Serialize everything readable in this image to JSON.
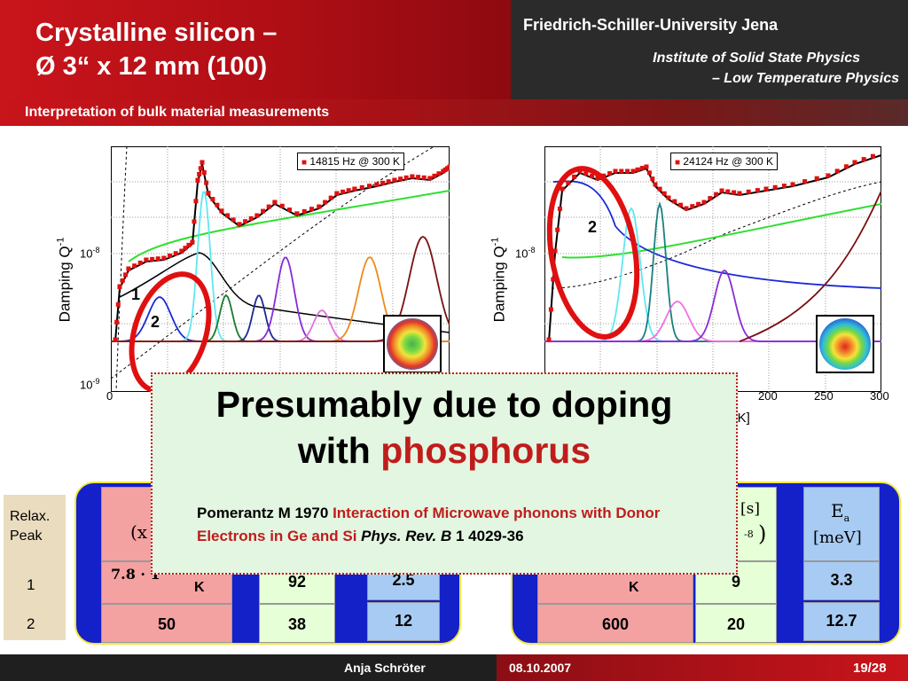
{
  "header": {
    "title_line1": "Crystalline silicon –",
    "title_line2": "Ø 3“ x 12 mm (100)",
    "university": "Friedrich-Schiller-University Jena",
    "institute_line1": "Institute of Solid State Physics",
    "institute_line2": "– Low Temperature Physics",
    "subtitle": "Interpretation of bulk material measurements"
  },
  "chart_data": [
    {
      "type": "line",
      "legend": "14815 Hz @ 300 K",
      "ylabel": "Damping Q",
      "ylabel_sup": "-1",
      "y_ticks": [
        {
          "base": "10",
          "exp": "-8"
        },
        {
          "base": "10",
          "exp": "-9"
        }
      ],
      "x_ticks": [
        "0"
      ],
      "log_y": true,
      "labels": [
        "1",
        "2"
      ],
      "xlim": [
        0,
        300
      ]
    },
    {
      "type": "line",
      "legend": "24124 Hz @ 300 K",
      "ylabel": "Damping Q",
      "ylabel_sup": "-1",
      "y_ticks": [
        {
          "base": "10",
          "exp": "-8"
        }
      ],
      "x_ticks": [
        "200",
        "250",
        "300"
      ],
      "xlabel_fragment": "e [K]",
      "log_y": true,
      "labels": [
        "2"
      ],
      "xlim": [
        0,
        300
      ]
    }
  ],
  "popup": {
    "line1": "Presumably due to doping",
    "line2_prefix": "with",
    "line2_highlight": "phosphorus",
    "ref_author": "Pomerantz M 1970",
    "ref_title": "Interaction of Microwave phonons with Donor Electrons in Ge and Si",
    "ref_journal": "Phys. Rev. B",
    "ref_volume": "1",
    "ref_pages": "4029-36"
  },
  "relax": {
    "label_line1": "Relax.",
    "label_line2": "Peak",
    "row1": "1",
    "row2": "2"
  },
  "table_left": {
    "pink_header": "(x",
    "pink_row1": "7.8 · 1",
    "pink_row1_unit": "K",
    "green_row1": "92",
    "blue_row1": "2.5",
    "pink_row2": "50",
    "green_row2": "38",
    "blue_row2": "12"
  },
  "table_right": {
    "green_header_unit": "[s]",
    "green_header_exp": "-8",
    "blue_header_sym": "E",
    "blue_header_sub": "a",
    "blue_header_unit": "[meV]",
    "pink_row1_unit": "K",
    "green_row1": "9",
    "blue_row1": "3.3",
    "pink_row2": "600",
    "green_row2": "20",
    "blue_row2": "12.7"
  },
  "footer": {
    "author": "Anja Schröter",
    "date": "08.10.2007",
    "page": "19/28"
  },
  "colors": {
    "brand_red": "#c9141b",
    "data_red": "#e01010",
    "popup_bg": "#e3f6e1",
    "table_blue": "#1420c8"
  }
}
